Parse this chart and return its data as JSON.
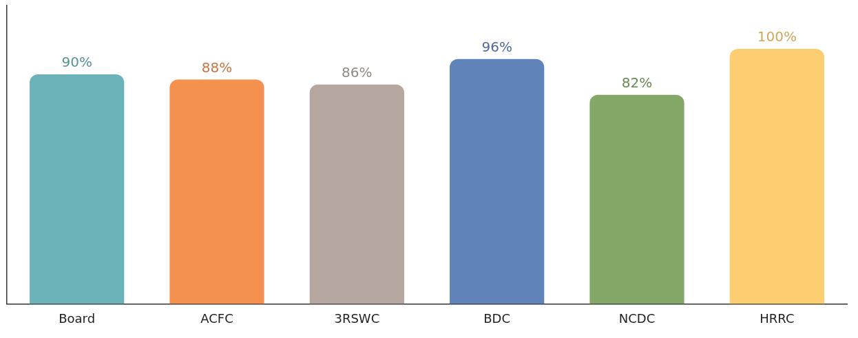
{
  "chart_data": {
    "type": "bar",
    "categories": [
      "Board",
      "ACFC",
      "3RSWC",
      "BDC",
      "NCDC",
      "HRRC"
    ],
    "values": [
      90,
      88,
      86,
      96,
      82,
      100
    ],
    "colors": [
      "#6bb3b8",
      "#f5914f",
      "#b5a79f",
      "#6083ba",
      "#82a767",
      "#fdcd72"
    ],
    "value_labels": [
      "90%",
      "88%",
      "86%",
      "96%",
      "82%",
      "100%"
    ],
    "ylim": [
      0,
      117
    ],
    "tick_labels": "x",
    "grid": false,
    "legend": false
  }
}
